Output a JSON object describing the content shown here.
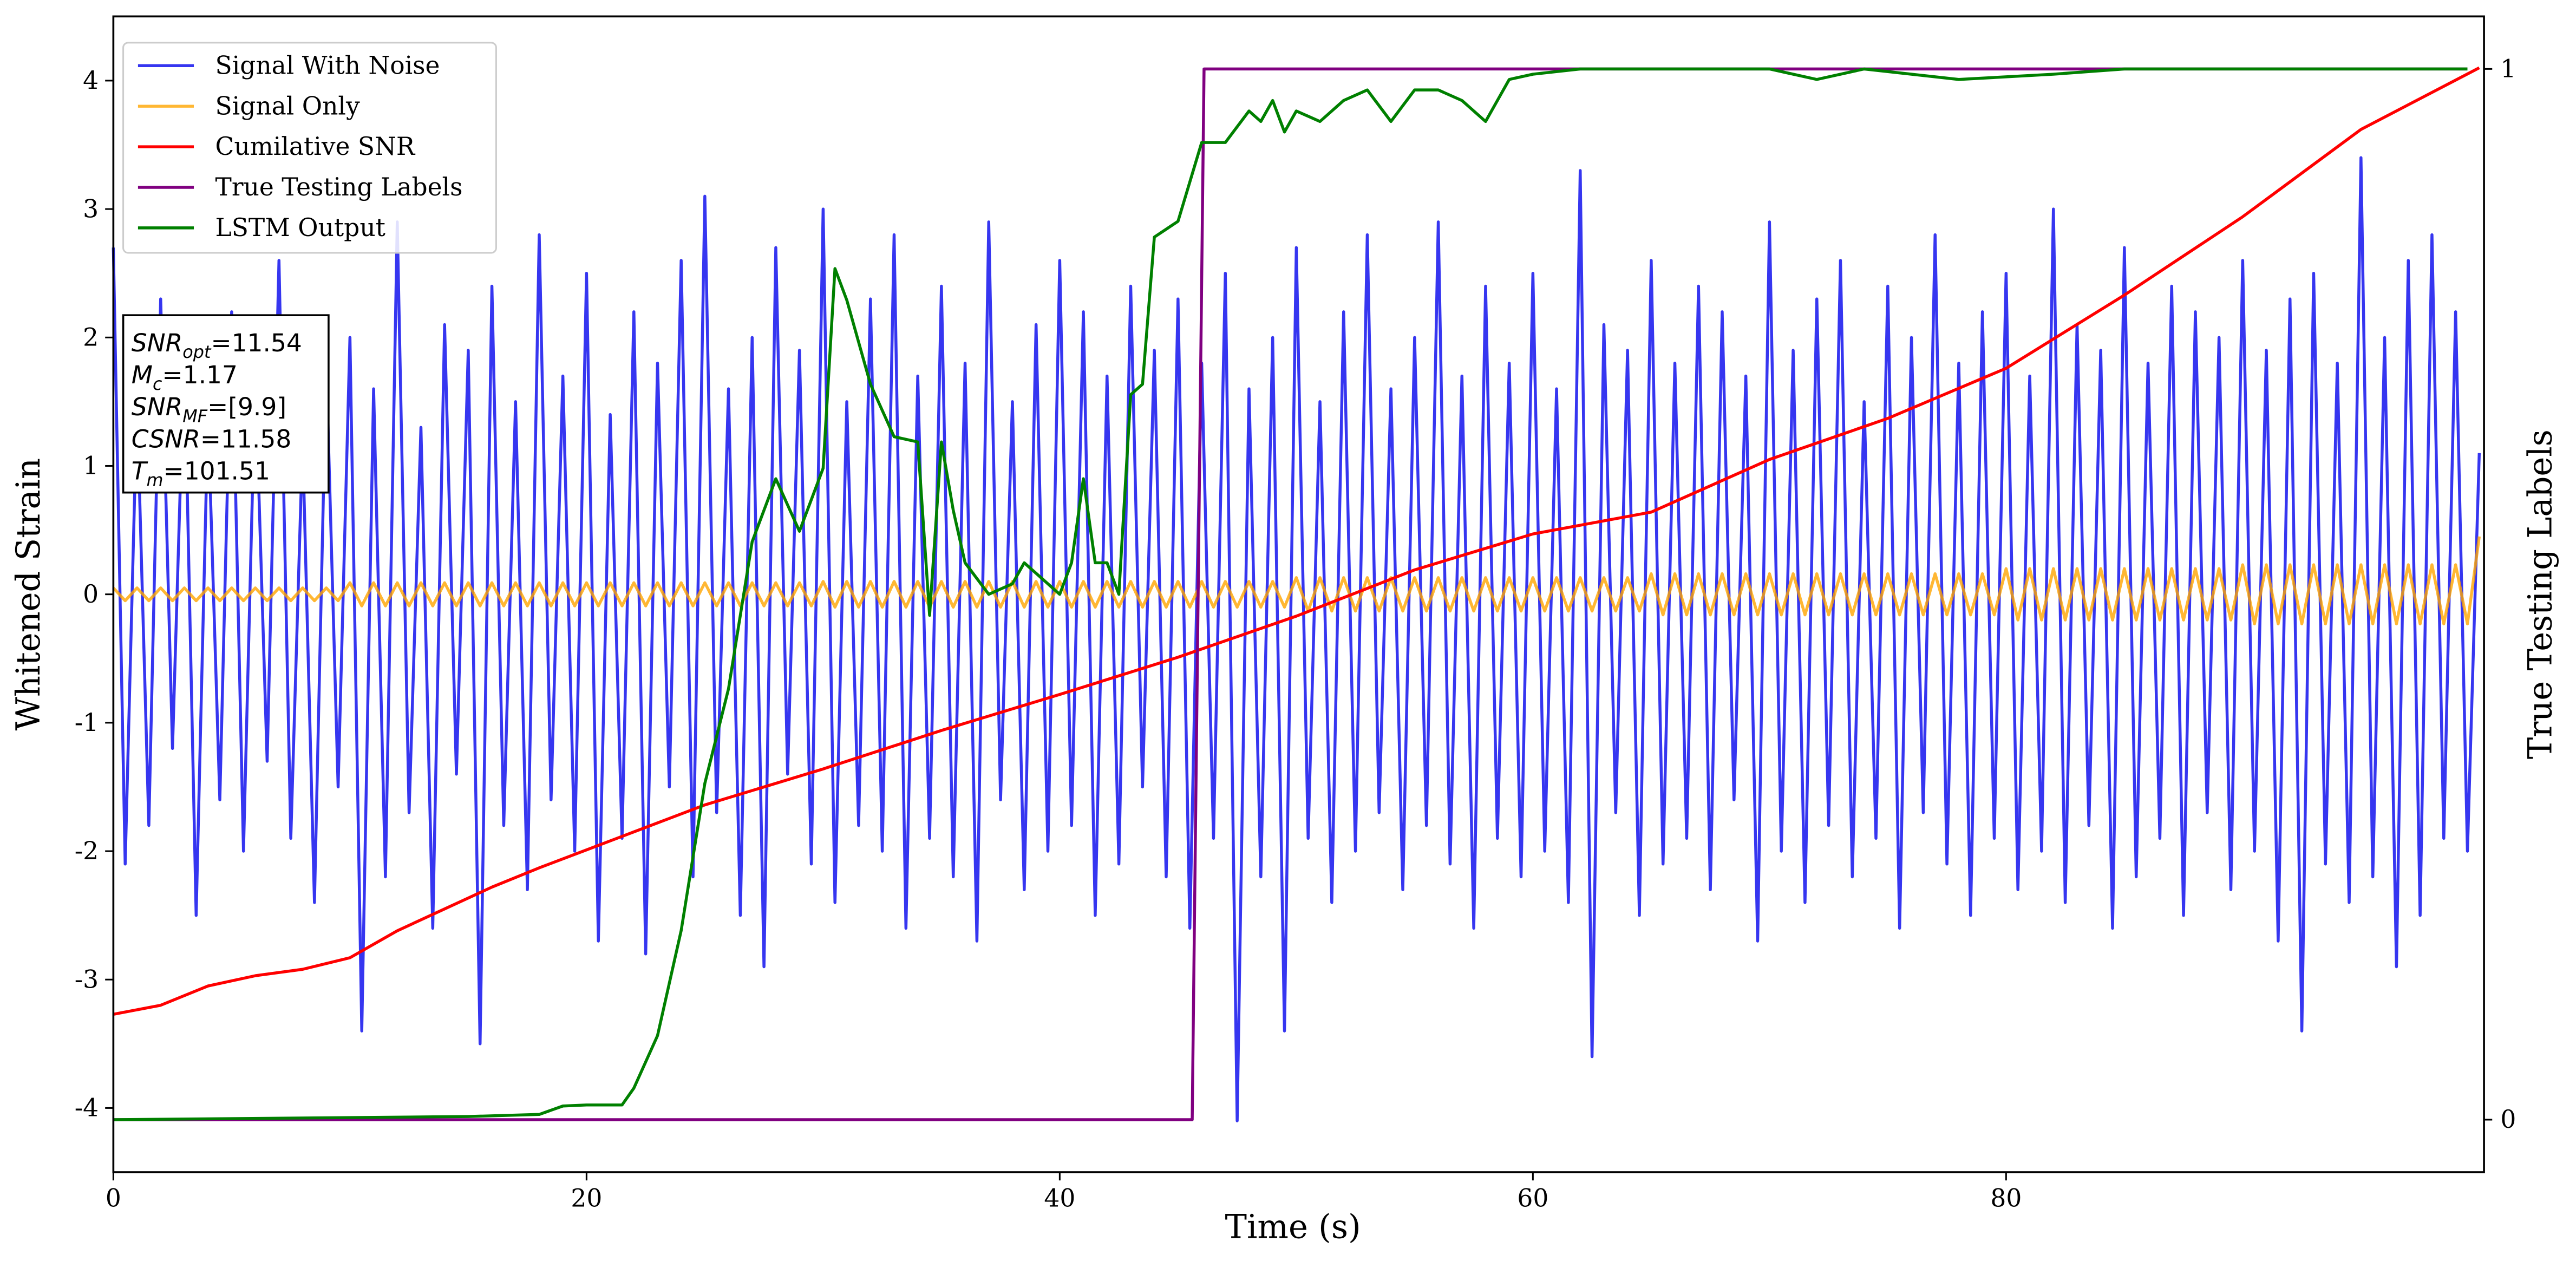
{
  "chart_data": {
    "type": "line",
    "xlabel": "Time (s)",
    "ylabel": "Whitened Strain",
    "y2label": "True Testing Labels",
    "xlim": [
      0,
      100.2
    ],
    "xticks": [
      0,
      20,
      40,
      60,
      80
    ],
    "ylim": [
      -4.5,
      4.5
    ],
    "yticks": [
      -4,
      -3,
      -2,
      -1,
      0,
      1,
      2,
      3,
      4
    ],
    "y2lim": [
      -0.05,
      1.05
    ],
    "y2ticks": [
      0,
      1
    ],
    "legend": "upper left",
    "x": [
      0,
      0.5,
      1,
      1.5,
      2,
      2.5,
      3,
      3.5,
      4,
      4.5,
      5,
      5.5,
      6,
      6.5,
      7,
      7.5,
      8,
      8.5,
      9,
      9.5,
      10,
      10.5,
      11,
      11.5,
      12,
      12.5,
      13,
      13.5,
      14,
      14.5,
      15,
      15.5,
      16,
      16.5,
      17,
      17.5,
      18,
      18.5,
      19,
      19.5,
      20,
      20.5,
      21,
      21.5,
      22,
      22.5,
      23,
      23.5,
      24,
      24.5,
      25,
      25.5,
      26,
      26.5,
      27,
      27.5,
      28,
      28.5,
      29,
      29.5,
      30,
      30.5,
      31,
      31.5,
      32,
      32.5,
      33,
      33.5,
      34,
      34.5,
      35,
      35.5,
      36,
      36.5,
      37,
      37.5,
      38,
      38.5,
      39,
      39.5,
      40,
      40.5,
      41,
      41.5,
      42,
      42.5,
      43,
      43.5,
      44,
      44.5,
      45,
      45.5,
      46,
      46.5,
      47,
      47.5,
      48,
      48.5,
      49,
      49.5,
      50,
      50.5,
      51,
      51.5,
      52,
      52.5,
      53,
      53.5,
      54,
      54.5,
      55,
      55.5,
      56,
      56.5,
      57,
      57.5,
      58,
      58.5,
      59,
      59.5,
      60,
      60.5,
      61,
      61.5,
      62,
      62.5,
      63,
      63.5,
      64,
      64.5,
      65,
      65.5,
      66,
      66.5,
      67,
      67.5,
      68,
      68.5,
      69,
      69.5,
      70,
      70.5,
      71,
      71.5,
      72,
      72.5,
      73,
      73.5,
      74,
      74.5,
      75,
      75.5,
      76,
      76.5,
      77,
      77.5,
      78,
      78.5,
      79,
      79.5,
      80,
      80.5,
      81,
      81.5,
      82,
      82.5,
      83,
      83.5,
      84,
      84.5,
      85,
      85.5,
      86,
      86.5,
      87,
      87.5,
      88,
      88.5,
      89,
      89.5,
      90,
      90.5,
      91,
      91.5,
      92,
      92.5,
      93,
      93.5,
      94,
      94.5,
      95,
      95.5,
      96,
      96.5,
      97,
      97.5,
      98,
      98.5,
      99,
      99.5,
      100
    ],
    "series": [
      {
        "name": "Signal With Noise",
        "color": "#2020ee",
        "opacity": 0.9,
        "values": [
          2.7,
          -2.1,
          1.5,
          -1.8,
          2.3,
          -1.2,
          1.9,
          -2.5,
          1.4,
          -1.6,
          2.2,
          -2.0,
          1.7,
          -1.3,
          2.6,
          -1.9,
          1.2,
          -2.4,
          1.8,
          -1.5,
          2.0,
          -3.4,
          1.6,
          -2.2,
          2.9,
          -1.7,
          1.3,
          -2.6,
          2.1,
          -1.4,
          1.9,
          -3.5,
          2.4,
          -1.8,
          1.5,
          -2.3,
          2.8,
          -1.6,
          1.7,
          -2.0,
          2.5,
          -2.7,
          1.4,
          -1.9,
          2.2,
          -2.8,
          1.8,
          -1.5,
          2.6,
          -2.2,
          3.1,
          -1.7,
          1.6,
          -2.5,
          2.0,
          -2.9,
          2.7,
          -1.4,
          1.9,
          -2.1,
          3.0,
          -2.4,
          1.5,
          -1.8,
          2.3,
          -2.0,
          2.8,
          -2.6,
          1.7,
          -1.9,
          2.4,
          -2.2,
          1.8,
          -2.7,
          2.9,
          -1.6,
          1.5,
          -2.3,
          2.1,
          -2.0,
          2.6,
          -1.8,
          2.2,
          -2.5,
          1.7,
          -2.1,
          2.4,
          -1.5,
          1.9,
          -2.2,
          2.3,
          -2.6,
          1.8,
          -1.9,
          2.5,
          -4.1,
          1.6,
          -2.2,
          2.0,
          -3.4,
          2.7,
          -1.9,
          1.5,
          -2.4,
          2.2,
          -2.0,
          2.8,
          -1.7,
          1.6,
          -2.3,
          2.0,
          -1.8,
          2.9,
          -2.1,
          1.7,
          -2.6,
          2.4,
          -1.9,
          1.8,
          -2.2,
          2.5,
          -2.0,
          1.6,
          -2.4,
          3.3,
          -3.6,
          2.1,
          -1.7,
          1.9,
          -2.5,
          2.6,
          -2.1,
          1.8,
          -1.9,
          2.4,
          -2.3,
          2.2,
          -1.6,
          1.7,
          -2.7,
          2.9,
          -2.0,
          1.9,
          -2.4,
          2.3,
          -1.8,
          2.6,
          -2.2,
          1.5,
          -1.9,
          2.4,
          -2.6,
          2.0,
          -1.7,
          2.8,
          -2.1,
          1.8,
          -2.5,
          2.2,
          -1.9,
          2.5,
          -2.3,
          1.7,
          -2.0,
          3.0,
          -2.4,
          2.1,
          -1.8,
          1.9,
          -2.6,
          2.7,
          -2.2,
          1.8,
          -1.9,
          2.4,
          -2.5,
          2.2,
          -1.7,
          2.0,
          -2.3,
          2.6,
          -2.0,
          1.9,
          -2.7,
          2.3,
          -3.4,
          2.5,
          -2.1,
          1.8,
          -2.4,
          3.4,
          -2.2,
          2.0,
          -2.9,
          2.6,
          -2.5,
          2.8,
          -1.9,
          2.2,
          -2.0,
          1.1
        ]
      },
      {
        "name": "Signal Only",
        "color": "orange",
        "opacity": 0.8,
        "values": [
          0.05,
          -0.05,
          0.05,
          -0.05,
          0.05,
          -0.05,
          0.05,
          -0.05,
          0.05,
          -0.05,
          0.05,
          -0.05,
          0.05,
          -0.05,
          0.05,
          -0.05,
          0.05,
          -0.05,
          0.05,
          -0.05,
          0.09,
          -0.09,
          0.09,
          -0.09,
          0.09,
          -0.09,
          0.09,
          -0.09,
          0.09,
          -0.09,
          0.09,
          -0.09,
          0.09,
          -0.09,
          0.09,
          -0.09,
          0.09,
          -0.09,
          0.09,
          -0.09,
          0.09,
          -0.09,
          0.09,
          -0.09,
          0.09,
          -0.09,
          0.09,
          -0.09,
          0.09,
          -0.09,
          0.09,
          -0.09,
          0.09,
          -0.09,
          0.09,
          -0.09,
          0.09,
          -0.09,
          0.09,
          -0.09,
          0.1,
          -0.1,
          0.1,
          -0.1,
          0.1,
          -0.1,
          0.1,
          -0.1,
          0.1,
          -0.1,
          0.1,
          -0.1,
          0.1,
          -0.1,
          0.1,
          -0.1,
          0.1,
          -0.1,
          0.1,
          -0.1,
          0.1,
          -0.1,
          0.1,
          -0.1,
          0.1,
          -0.1,
          0.1,
          -0.1,
          0.1,
          -0.1,
          0.1,
          -0.1,
          0.1,
          -0.1,
          0.1,
          -0.1,
          0.1,
          -0.1,
          0.1,
          -0.1,
          0.13,
          -0.13,
          0.13,
          -0.13,
          0.13,
          -0.13,
          0.13,
          -0.13,
          0.13,
          -0.13,
          0.13,
          -0.13,
          0.13,
          -0.13,
          0.13,
          -0.13,
          0.13,
          -0.13,
          0.13,
          -0.13,
          0.13,
          -0.13,
          0.13,
          -0.13,
          0.13,
          -0.13,
          0.13,
          -0.13,
          0.13,
          -0.13,
          0.16,
          -0.16,
          0.16,
          -0.16,
          0.16,
          -0.16,
          0.16,
          -0.16,
          0.16,
          -0.16,
          0.16,
          -0.16,
          0.16,
          -0.16,
          0.16,
          -0.16,
          0.16,
          -0.16,
          0.16,
          -0.16,
          0.16,
          -0.16,
          0.16,
          -0.16,
          0.16,
          -0.16,
          0.16,
          -0.16,
          0.16,
          -0.16,
          0.2,
          -0.2,
          0.2,
          -0.2,
          0.2,
          -0.2,
          0.2,
          -0.2,
          0.2,
          -0.2,
          0.2,
          -0.2,
          0.2,
          -0.2,
          0.2,
          -0.2,
          0.2,
          -0.2,
          0.2,
          -0.2,
          0.23,
          -0.23,
          0.23,
          -0.23,
          0.23,
          -0.23,
          0.23,
          -0.23,
          0.23,
          -0.23,
          0.23,
          -0.23,
          0.23,
          -0.23,
          0.23,
          -0.23,
          0.23,
          -0.23,
          0.23,
          -0.23,
          0.45
        ]
      },
      {
        "name": "Cumilative SNR",
        "color": "red",
        "opacity": 1,
        "x": [
          0,
          2,
          4,
          6,
          8,
          10,
          12,
          14,
          16,
          18,
          20,
          22,
          25,
          30,
          35,
          40,
          45,
          50,
          55,
          60,
          65,
          70,
          75,
          80,
          85,
          90,
          95,
          100
        ],
        "values": [
          -3.27,
          -3.2,
          -3.05,
          -2.97,
          -2.92,
          -2.83,
          -2.62,
          -2.45,
          -2.28,
          -2.13,
          -1.99,
          -1.85,
          -1.64,
          -1.36,
          -1.06,
          -0.78,
          -0.49,
          -0.17,
          0.19,
          0.47,
          0.64,
          1.05,
          1.37,
          1.76,
          2.33,
          2.94,
          3.62,
          4.1
        ]
      },
      {
        "name": "True Testing Labels",
        "color": "purple",
        "opacity": 1,
        "axis": "y2",
        "x": [
          0,
          45.6,
          46.1,
          99.5
        ],
        "values": [
          0,
          0,
          1,
          1
        ]
      },
      {
        "name": "LSTM Output",
        "color": "green",
        "opacity": 1,
        "axis": "y2",
        "x": [
          0,
          15,
          18,
          19,
          20,
          21.5,
          22,
          23,
          24,
          25,
          26,
          27,
          28,
          29,
          30,
          30.5,
          31,
          32,
          33,
          34,
          34.5,
          35,
          35.5,
          36,
          37,
          38,
          38.5,
          39,
          40,
          40.5,
          41,
          41.5,
          42,
          42.5,
          43,
          43.5,
          44,
          45,
          46,
          47,
          48,
          48.5,
          49,
          49.5,
          50,
          51,
          52,
          53,
          54,
          55,
          56,
          57,
          58,
          58.5,
          59,
          60,
          62,
          65,
          70,
          72,
          74,
          78,
          82,
          85,
          90,
          99.5
        ],
        "values": [
          0,
          0.003,
          0.005,
          0.013,
          0.014,
          0.014,
          0.03,
          0.08,
          0.18,
          0.32,
          0.41,
          0.55,
          0.61,
          0.56,
          0.62,
          0.81,
          0.78,
          0.7,
          0.65,
          0.645,
          0.48,
          0.645,
          0.58,
          0.53,
          0.5,
          0.51,
          0.53,
          0.52,
          0.5,
          0.53,
          0.61,
          0.53,
          0.53,
          0.5,
          0.69,
          0.7,
          0.84,
          0.855,
          0.93,
          0.93,
          0.96,
          0.95,
          0.97,
          0.94,
          0.96,
          0.95,
          0.97,
          0.98,
          0.95,
          0.98,
          0.98,
          0.97,
          0.95,
          0.97,
          0.99,
          0.995,
          1.0,
          1.0,
          1.0,
          0.99,
          1.0,
          0.99,
          0.995,
          1.0,
          1.0,
          1.0
        ]
      }
    ],
    "annotation": [
      {
        "label": "SNR",
        "sub": "opt",
        "text": "=11.54"
      },
      {
        "label": "M",
        "sub": "c",
        "text": "=1.17"
      },
      {
        "label": "SNR",
        "sub": "MF",
        "text": "=[9.9]"
      },
      {
        "label": "CSNR",
        "text": "=11.58"
      },
      {
        "label": "T",
        "sub": "m",
        "text": "=101.51"
      }
    ]
  }
}
